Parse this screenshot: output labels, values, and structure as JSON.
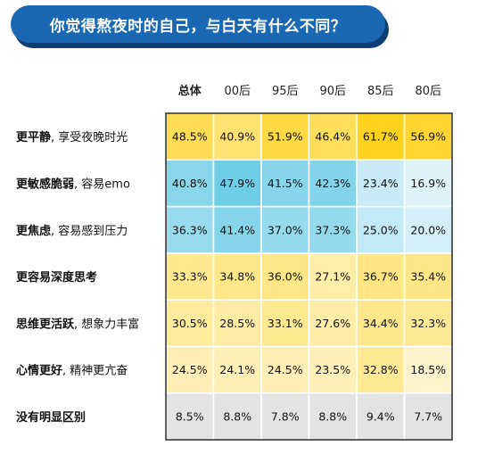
{
  "title": "你觉得熬夜时的自己，与白天有什么不同？",
  "chart_data": {
    "type": "table",
    "columns": [
      "总体",
      "00后",
      "95后",
      "90后",
      "85后",
      "80后"
    ],
    "rows": [
      {
        "label_bold": "更平静",
        "label_rest": ", 享受夜晚时光",
        "group": "yellow",
        "values": [
          "48.5%",
          "40.9%",
          "51.9%",
          "46.4%",
          "61.7%",
          "56.9%"
        ]
      },
      {
        "label_bold": "更敏感脆弱",
        "label_rest": ", 容易emo",
        "group": "blue",
        "values": [
          "40.8%",
          "47.9%",
          "41.5%",
          "42.3%",
          "23.4%",
          "16.9%"
        ]
      },
      {
        "label_bold": "更焦虑",
        "label_rest": ", 容易感到压力",
        "group": "blue",
        "values": [
          "36.3%",
          "41.4%",
          "37.0%",
          "37.3%",
          "25.0%",
          "20.0%"
        ]
      },
      {
        "label_bold": "更容易深度思考",
        "label_rest": "",
        "group": "yellow",
        "values": [
          "33.3%",
          "34.8%",
          "36.0%",
          "27.1%",
          "36.7%",
          "35.4%"
        ]
      },
      {
        "label_bold": "思维更活跃",
        "label_rest": ", 想象力丰富",
        "group": "yellow",
        "values": [
          "30.5%",
          "28.5%",
          "33.1%",
          "27.6%",
          "34.4%",
          "32.3%"
        ]
      },
      {
        "label_bold": "心情更好",
        "label_rest": ", 精神更亢奋",
        "group": "yellow",
        "values": [
          "24.5%",
          "24.1%",
          "24.5%",
          "23.5%",
          "32.8%",
          "18.5%"
        ]
      },
      {
        "label_bold": "没有明显区别",
        "label_rest": "",
        "group": "gray",
        "values": [
          "8.5%",
          "8.8%",
          "7.8%",
          "8.8%",
          "9.4%",
          "7.7%"
        ]
      }
    ],
    "colors": {
      "yellow": [
        "#fff4cc",
        "#ffd21e"
      ],
      "blue": [
        "#dff3fb",
        "#6fcde6"
      ],
      "gray": "#e3e3e3",
      "grid": "#ffffff"
    }
  }
}
